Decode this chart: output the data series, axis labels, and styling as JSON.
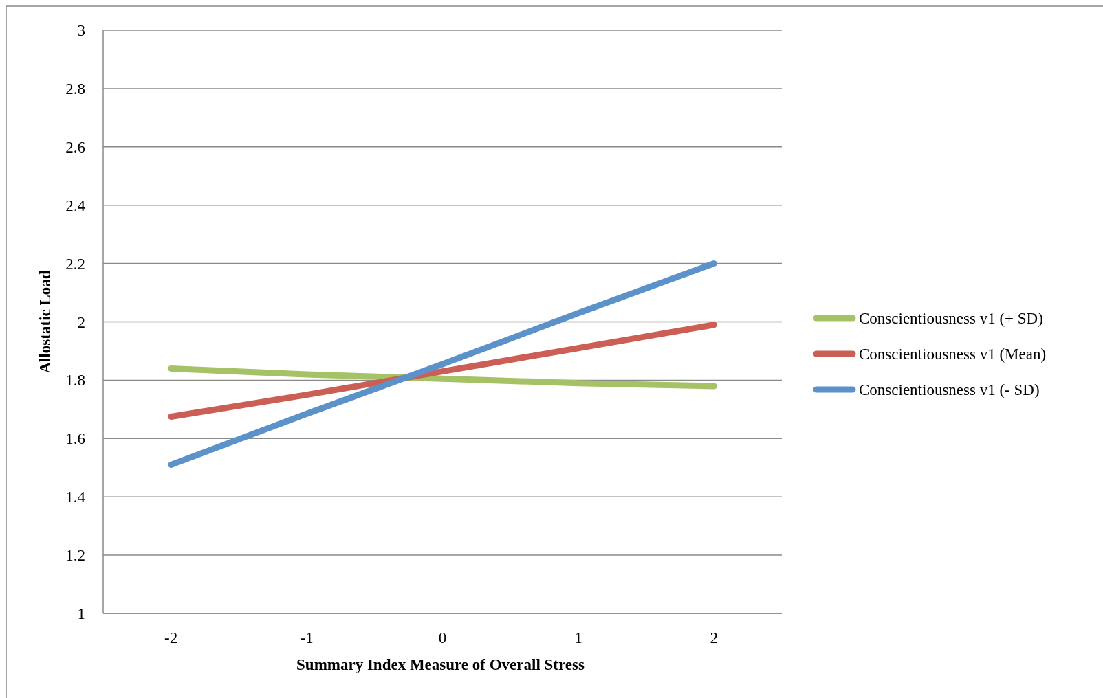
{
  "chart_data": {
    "type": "line",
    "xlabel": "Summary Index Measure of Overall Stress",
    "ylabel": "Allostatic Load",
    "categories": [
      "-2",
      "-1",
      "0",
      "1",
      "2"
    ],
    "series": [
      {
        "name": "Conscientiousness v1 (+ SD)",
        "color": "#a5c266",
        "values": [
          1.84,
          1.82,
          1.805,
          1.79,
          1.78
        ]
      },
      {
        "name": "Conscientiousness v1 (Mean)",
        "color": "#cc5f55",
        "values": [
          1.675,
          1.75,
          1.83,
          1.91,
          1.99
        ]
      },
      {
        "name": "Conscientiousness v1 (- SD)",
        "color": "#5b92c9",
        "values": [
          1.51,
          1.685,
          1.855,
          2.03,
          2.2
        ]
      }
    ],
    "ylim": [
      1,
      3
    ],
    "yticks": [
      1,
      1.2,
      1.4,
      1.6,
      1.8,
      2,
      2.2,
      2.4,
      2.6,
      2.8,
      3
    ],
    "grid": "y",
    "legend": "right",
    "marker": "none",
    "line_style": "solid"
  }
}
